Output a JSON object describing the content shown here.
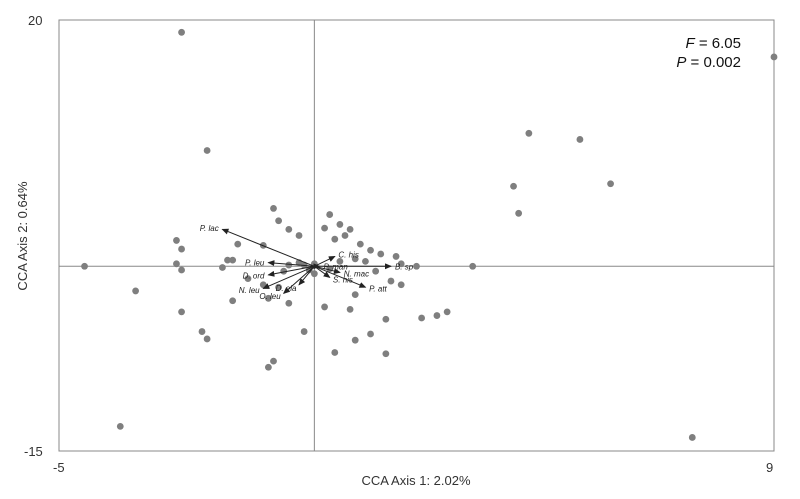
{
  "chart_data": {
    "type": "scatter",
    "xlabel": "CCA Axis 1: 2.02%",
    "ylabel": "CCA Axis 2: 0.64%",
    "xlim": [
      -5,
      9
    ],
    "ylim": [
      -15,
      20
    ],
    "x_ticks": [
      "-5",
      "9"
    ],
    "y_ticks": [
      "20",
      "-15"
    ],
    "grid": false,
    "annotations": {
      "f_label": "F",
      "f_value": " = 6.05",
      "p_label": "P",
      "p_value": " = 0.002"
    },
    "colors": {
      "points": "#7f7f7f",
      "arrows": "#222222",
      "frame": "#888888"
    },
    "points": [
      [
        -4.5,
        0.0
      ],
      [
        -3.8,
        -13.0
      ],
      [
        -3.5,
        -2.0
      ],
      [
        -2.6,
        19.0
      ],
      [
        -2.1,
        9.4
      ],
      [
        -2.7,
        2.1
      ],
      [
        -2.6,
        1.4
      ],
      [
        -2.7,
        0.2
      ],
      [
        -2.6,
        -0.3
      ],
      [
        -2.6,
        -3.7
      ],
      [
        -2.2,
        -5.3
      ],
      [
        -2.1,
        -5.9
      ],
      [
        -1.8,
        -0.1
      ],
      [
        -1.7,
        0.5
      ],
      [
        -1.6,
        0.5
      ],
      [
        -1.5,
        1.8
      ],
      [
        -1.3,
        -1.0
      ],
      [
        -1.6,
        -2.8
      ],
      [
        -1.0,
        1.7
      ],
      [
        -0.8,
        4.7
      ],
      [
        -0.7,
        3.7
      ],
      [
        -0.5,
        3.0
      ],
      [
        -0.3,
        2.5
      ],
      [
        -1.0,
        -1.5
      ],
      [
        -0.9,
        -2.6
      ],
      [
        -0.5,
        -3.0
      ],
      [
        -0.7,
        -1.7
      ],
      [
        -0.9,
        -8.2
      ],
      [
        -0.8,
        -7.7
      ],
      [
        -0.2,
        -5.3
      ],
      [
        -0.2,
        0.1
      ],
      [
        -0.1,
        -0.3
      ],
      [
        0.0,
        -0.6
      ],
      [
        0.2,
        3.1
      ],
      [
        0.3,
        4.2
      ],
      [
        0.4,
        2.2
      ],
      [
        0.5,
        3.4
      ],
      [
        0.6,
        2.5
      ],
      [
        0.7,
        3.0
      ],
      [
        0.8,
        0.6
      ],
      [
        0.9,
        1.8
      ],
      [
        1.0,
        0.4
      ],
      [
        1.1,
        1.3
      ],
      [
        1.3,
        1.0
      ],
      [
        1.2,
        -0.4
      ],
      [
        1.5,
        -1.2
      ],
      [
        1.6,
        0.8
      ],
      [
        1.7,
        0.2
      ],
      [
        1.7,
        -1.5
      ],
      [
        0.8,
        -2.3
      ],
      [
        0.2,
        -3.3
      ],
      [
        0.4,
        -7.0
      ],
      [
        0.7,
        -3.5
      ],
      [
        0.8,
        -6.0
      ],
      [
        1.1,
        -5.5
      ],
      [
        1.4,
        -4.3
      ],
      [
        1.4,
        -7.1
      ],
      [
        2.0,
        0.0
      ],
      [
        2.1,
        -4.2
      ],
      [
        2.4,
        -4.0
      ],
      [
        2.6,
        -3.7
      ],
      [
        3.1,
        0.0
      ],
      [
        3.9,
        6.5
      ],
      [
        4.0,
        4.3
      ],
      [
        4.2,
        10.8
      ],
      [
        5.2,
        10.3
      ],
      [
        5.8,
        6.7
      ],
      [
        9.0,
        17.0
      ],
      [
        7.4,
        -13.9
      ],
      [
        -0.5,
        0.1
      ],
      [
        0.3,
        -0.2
      ],
      [
        -0.3,
        0.3
      ],
      [
        0.5,
        0.4
      ],
      [
        -0.6,
        -0.4
      ],
      [
        0.0,
        0.2
      ]
    ],
    "vectors": [
      {
        "label": "P. lac",
        "x": -1.8,
        "y": 3.0
      },
      {
        "label": "P. leu",
        "x": -0.9,
        "y": 0.3
      },
      {
        "label": "C. his",
        "x": 0.4,
        "y": 0.8
      },
      {
        "label": "D. ord",
        "x": -0.9,
        "y": -0.7
      },
      {
        "label": "N. leu",
        "x": -1.0,
        "y": -1.8
      },
      {
        "label": "D. ela",
        "x": -0.3,
        "y": -1.5
      },
      {
        "label": "O. leu",
        "x": -0.6,
        "y": -2.2
      },
      {
        "label": "S. his",
        "x": 0.3,
        "y": -0.9
      },
      {
        "label": "P. att",
        "x": 1.0,
        "y": -1.7
      },
      {
        "label": "N. mac",
        "x": 0.5,
        "y": -0.5
      },
      {
        "label": "B. sp",
        "x": 1.5,
        "y": 0.0
      },
      {
        "label": "P. man",
        "x": 0.1,
        "y": 0.0
      }
    ]
  }
}
